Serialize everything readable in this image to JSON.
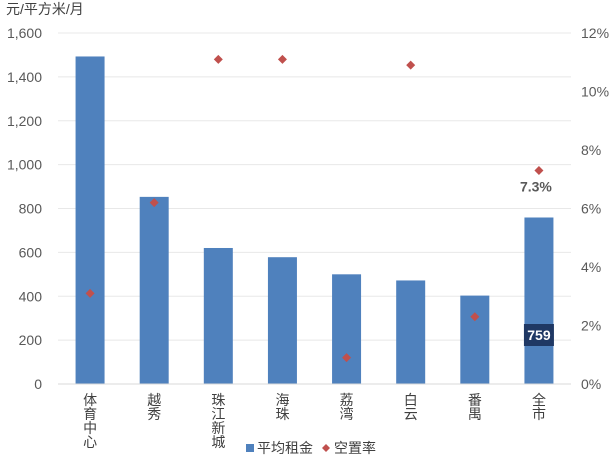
{
  "chart_data": {
    "type": "bar",
    "y_unit": "元/平方米/月",
    "categories": [
      "体育中心",
      "越秀",
      "珠江新城",
      "海珠",
      "荔湾",
      "白云",
      "番禺",
      "全市"
    ],
    "series": [
      {
        "name": "平均租金",
        "type": "bar",
        "axis": "left",
        "values": [
          1493,
          853,
          620,
          578,
          500,
          472,
          403,
          759
        ],
        "color": "#4F81BD"
      },
      {
        "name": "空置率",
        "type": "scatter",
        "axis": "right",
        "unit": "%",
        "values": [
          3.1,
          6.2,
          11.1,
          11.1,
          0.9,
          10.9,
          2.3,
          7.3
        ],
        "color": "#C0504D"
      }
    ],
    "y_left": {
      "min": 0,
      "max": 1600,
      "ticks": [
        0,
        200,
        400,
        600,
        800,
        1000,
        1200,
        1400,
        1600
      ],
      "tick_labels": [
        "0",
        "200",
        "400",
        "600",
        "800",
        "1,000",
        "1,200",
        "1,400",
        "1,600"
      ]
    },
    "y_right": {
      "min": 0,
      "max": 12,
      "ticks": [
        0,
        2,
        4,
        6,
        8,
        10,
        12
      ],
      "tick_labels": [
        "0%",
        "2%",
        "4%",
        "6%",
        "8%",
        "10%",
        "12%"
      ]
    },
    "annotations": {
      "rate_label": {
        "category": "全市",
        "text": "7.3%"
      },
      "bar_label": {
        "category": "全市",
        "text": "759"
      }
    },
    "legend": {
      "position": "bottom"
    },
    "grid": "horizontal"
  }
}
